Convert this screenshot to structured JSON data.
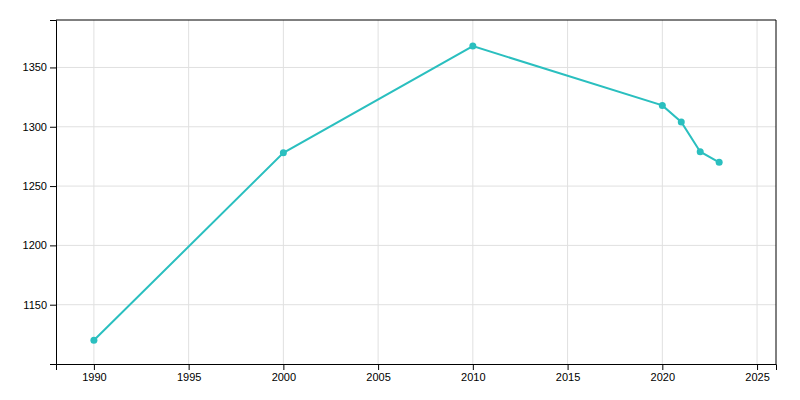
{
  "chart_data": {
    "type": "line",
    "x": [
      1990,
      2000,
      2010,
      2020,
      2021,
      2022,
      2023
    ],
    "values": [
      1120,
      1278,
      1368,
      1318,
      1304,
      1279,
      1270
    ],
    "color": "#2abfbf",
    "marker": "circle",
    "xlim": [
      1988,
      2026
    ],
    "ylim": [
      1100,
      1390
    ],
    "xticks": [
      1990,
      1995,
      2000,
      2005,
      2010,
      2015,
      2020,
      2025
    ],
    "yticks": [
      1150,
      1200,
      1250,
      1300,
      1350
    ],
    "grid": true
  }
}
